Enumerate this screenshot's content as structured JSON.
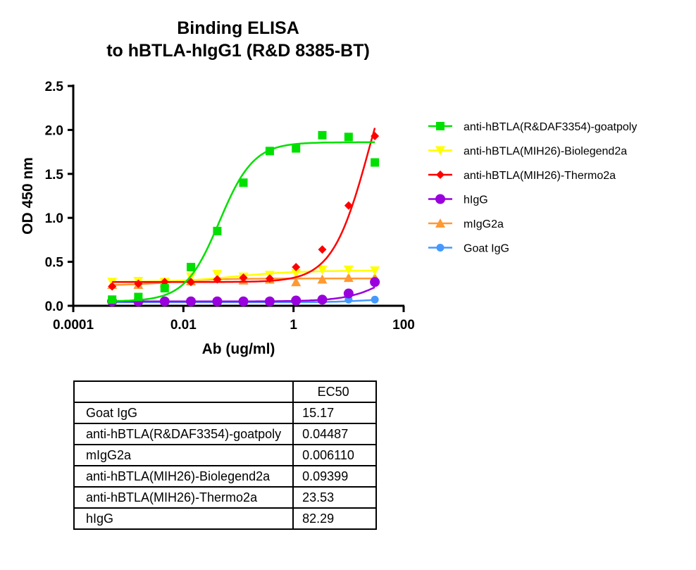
{
  "chart_data": {
    "type": "scatter",
    "title": [
      "Binding ELISA",
      "to hBTLA-hIgG1 (R&D 8385-BT)"
    ],
    "xlabel": "Ab (ug/ml)",
    "ylabel": "OD 450 nm",
    "xscale": "log",
    "xlim": [
      0.0001,
      100
    ],
    "ylim": [
      0,
      2.5
    ],
    "xticks": [
      "0.0001",
      "0.01",
      "1",
      "100"
    ],
    "yticks": [
      "0.0",
      "0.5",
      "1.0",
      "1.5",
      "2.0",
      "2.5"
    ],
    "legend_position": "right",
    "x": [
      0.000508,
      0.00152,
      0.00457,
      0.0137,
      0.0412,
      0.123,
      0.37,
      1.11,
      3.33,
      10,
      30
    ],
    "series": [
      {
        "name": "anti-hBTLA(R&DAF3354)-goatpoly",
        "color": "#00e000",
        "marker": "square",
        "values": [
          0.07,
          0.1,
          0.2,
          0.44,
          0.85,
          1.4,
          1.76,
          1.79,
          1.94,
          1.92,
          1.63
        ],
        "fit": {
          "bottom": 0.05,
          "top": 1.86,
          "ec50": 0.04487,
          "hill": 1.4
        }
      },
      {
        "name": "anti-hBTLA(MIH26)-Biolegend2a",
        "color": "#ffff00",
        "marker": "triangle-down",
        "values": [
          0.27,
          0.28,
          0.27,
          0.33,
          0.36,
          0.33,
          0.35,
          0.37,
          0.41,
          0.41,
          0.4
        ],
        "fit": {
          "bottom": 0.27,
          "top": 0.4,
          "ec50": 0.09399,
          "hill": 0.8
        }
      },
      {
        "name": "anti-hBTLA(MIH26)-Thermo2a",
        "color": "#ff0000",
        "marker": "diamond",
        "values": [
          0.22,
          0.25,
          0.27,
          0.27,
          0.3,
          0.32,
          0.31,
          0.44,
          0.64,
          1.14,
          1.93
        ],
        "fit": {
          "bottom": 0.27,
          "top": 3.3,
          "ec50": 23.53,
          "hill": 1.3
        }
      },
      {
        "name": "hIgG",
        "color": "#9900dd",
        "marker": "circle",
        "values": [
          0.05,
          0.05,
          0.05,
          0.05,
          0.05,
          0.05,
          0.05,
          0.06,
          0.07,
          0.14,
          0.27
        ],
        "fit": {
          "bottom": 0.05,
          "top": 0.7,
          "ec50": 82.29,
          "hill": 1.1
        }
      },
      {
        "name": "mIgG2a",
        "color": "#ff9933",
        "marker": "triangle-up",
        "values": [
          0.24,
          0.24,
          0.26,
          0.28,
          0.31,
          0.29,
          0.3,
          0.27,
          0.3,
          0.32,
          0.32
        ],
        "fit": {
          "bottom": 0.23,
          "top": 0.31,
          "ec50": 0.00611,
          "hill": 1.0
        }
      },
      {
        "name": "Goat IgG",
        "color": "#4499ff",
        "marker": "circle-small",
        "values": [
          0.04,
          0.04,
          0.04,
          0.04,
          0.04,
          0.04,
          0.04,
          0.05,
          0.06,
          0.07,
          0.07
        ],
        "fit": {
          "bottom": 0.04,
          "top": 0.075,
          "ec50": 15.17,
          "hill": 1.5
        }
      }
    ]
  },
  "table": {
    "header": [
      "",
      "EC50"
    ],
    "rows": [
      [
        "Goat IgG",
        "15.17"
      ],
      [
        "anti-hBTLA(R&DAF3354)-goatpoly",
        "0.04487"
      ],
      [
        "mIgG2a",
        "0.006110"
      ],
      [
        "anti-hBTLA(MIH26)-Biolegend2a",
        "0.09399"
      ],
      [
        "anti-hBTLA(MIH26)-Thermo2a",
        "23.53"
      ],
      [
        "hIgG",
        "82.29"
      ]
    ]
  }
}
